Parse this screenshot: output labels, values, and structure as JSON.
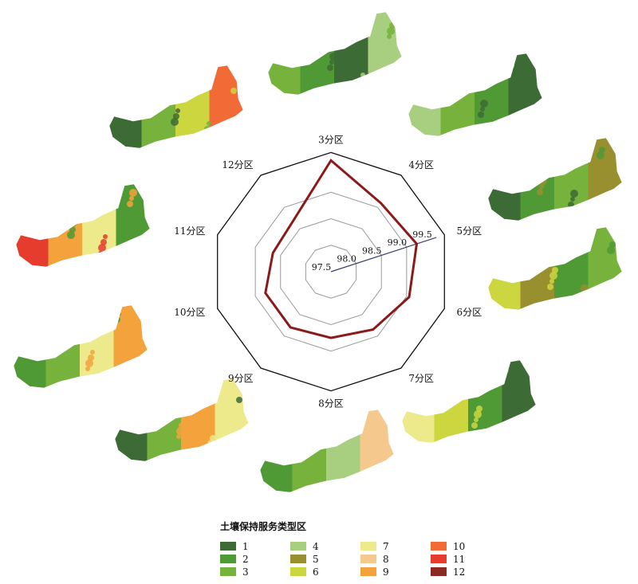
{
  "chart_data": {
    "type": "radar",
    "categories": [
      "3分区",
      "4分区",
      "5分区",
      "6分区",
      "7分区",
      "8分区",
      "9分区",
      "10分区",
      "11分区",
      "12分区"
    ],
    "values": [
      99.6,
      99.1,
      99.2,
      99.05,
      98.85,
      98.75,
      98.8,
      98.8,
      98.65,
      98.7
    ],
    "rlim": [
      97.5,
      99.5
    ],
    "ring_values": [
      97.5,
      98.0,
      98.5,
      99.0
    ],
    "outer_frame_value": 99.75,
    "tick_labels": [
      "97.5",
      "98.0",
      "98.5",
      "99.0",
      "99.5"
    ],
    "series_color": "#8b1a1a",
    "grid": true
  },
  "legend": {
    "title": "土壤保持服务类型区",
    "items": [
      {
        "label": "1",
        "color": "#3d6b35"
      },
      {
        "label": "2",
        "color": "#4f9a35"
      },
      {
        "label": "3",
        "color": "#77b23c"
      },
      {
        "label": "4",
        "color": "#a7cf7f"
      },
      {
        "label": "5",
        "color": "#98902e"
      },
      {
        "label": "6",
        "color": "#ccd63e"
      },
      {
        "label": "7",
        "color": "#edea8b"
      },
      {
        "label": "8",
        "color": "#f5c98d"
      },
      {
        "label": "9",
        "color": "#f3a23c"
      },
      {
        "label": "10",
        "color": "#f26a35"
      },
      {
        "label": "11",
        "color": "#e53c2e"
      },
      {
        "label": "12",
        "color": "#8b2a22"
      }
    ]
  },
  "maps": [
    {
      "region": "3分区",
      "colors": [
        "#77b23c",
        "#4f9a35",
        "#3d6b35",
        "#a7cf7f"
      ]
    },
    {
      "region": "4分区",
      "colors": [
        "#a7cf7f",
        "#77b23c",
        "#4f9a35",
        "#3d6b35"
      ]
    },
    {
      "region": "5分区",
      "colors": [
        "#3d6b35",
        "#4f9a35",
        "#77b23c",
        "#98902e"
      ]
    },
    {
      "region": "6分区",
      "colors": [
        "#ccd63e",
        "#98902e",
        "#4f9a35",
        "#77b23c"
      ]
    },
    {
      "region": "7分区",
      "colors": [
        "#edea8b",
        "#ccd63e",
        "#4f9a35",
        "#3d6b35"
      ]
    },
    {
      "region": "8分区",
      "colors": [
        "#4f9a35",
        "#77b23c",
        "#a7cf7f",
        "#f5c98d"
      ]
    },
    {
      "region": "9分区",
      "colors": [
        "#3d6b35",
        "#77b23c",
        "#f3a23c",
        "#edea8b"
      ]
    },
    {
      "region": "10分区",
      "colors": [
        "#4f9a35",
        "#77b23c",
        "#edea8b",
        "#f3a23c"
      ]
    },
    {
      "region": "11分区",
      "colors": [
        "#e53c2e",
        "#f3a23c",
        "#edea8b",
        "#4f9a35"
      ]
    },
    {
      "region": "12分区",
      "colors": [
        "#3d6b35",
        "#77b23c",
        "#ccd63e",
        "#f26a35"
      ]
    }
  ]
}
